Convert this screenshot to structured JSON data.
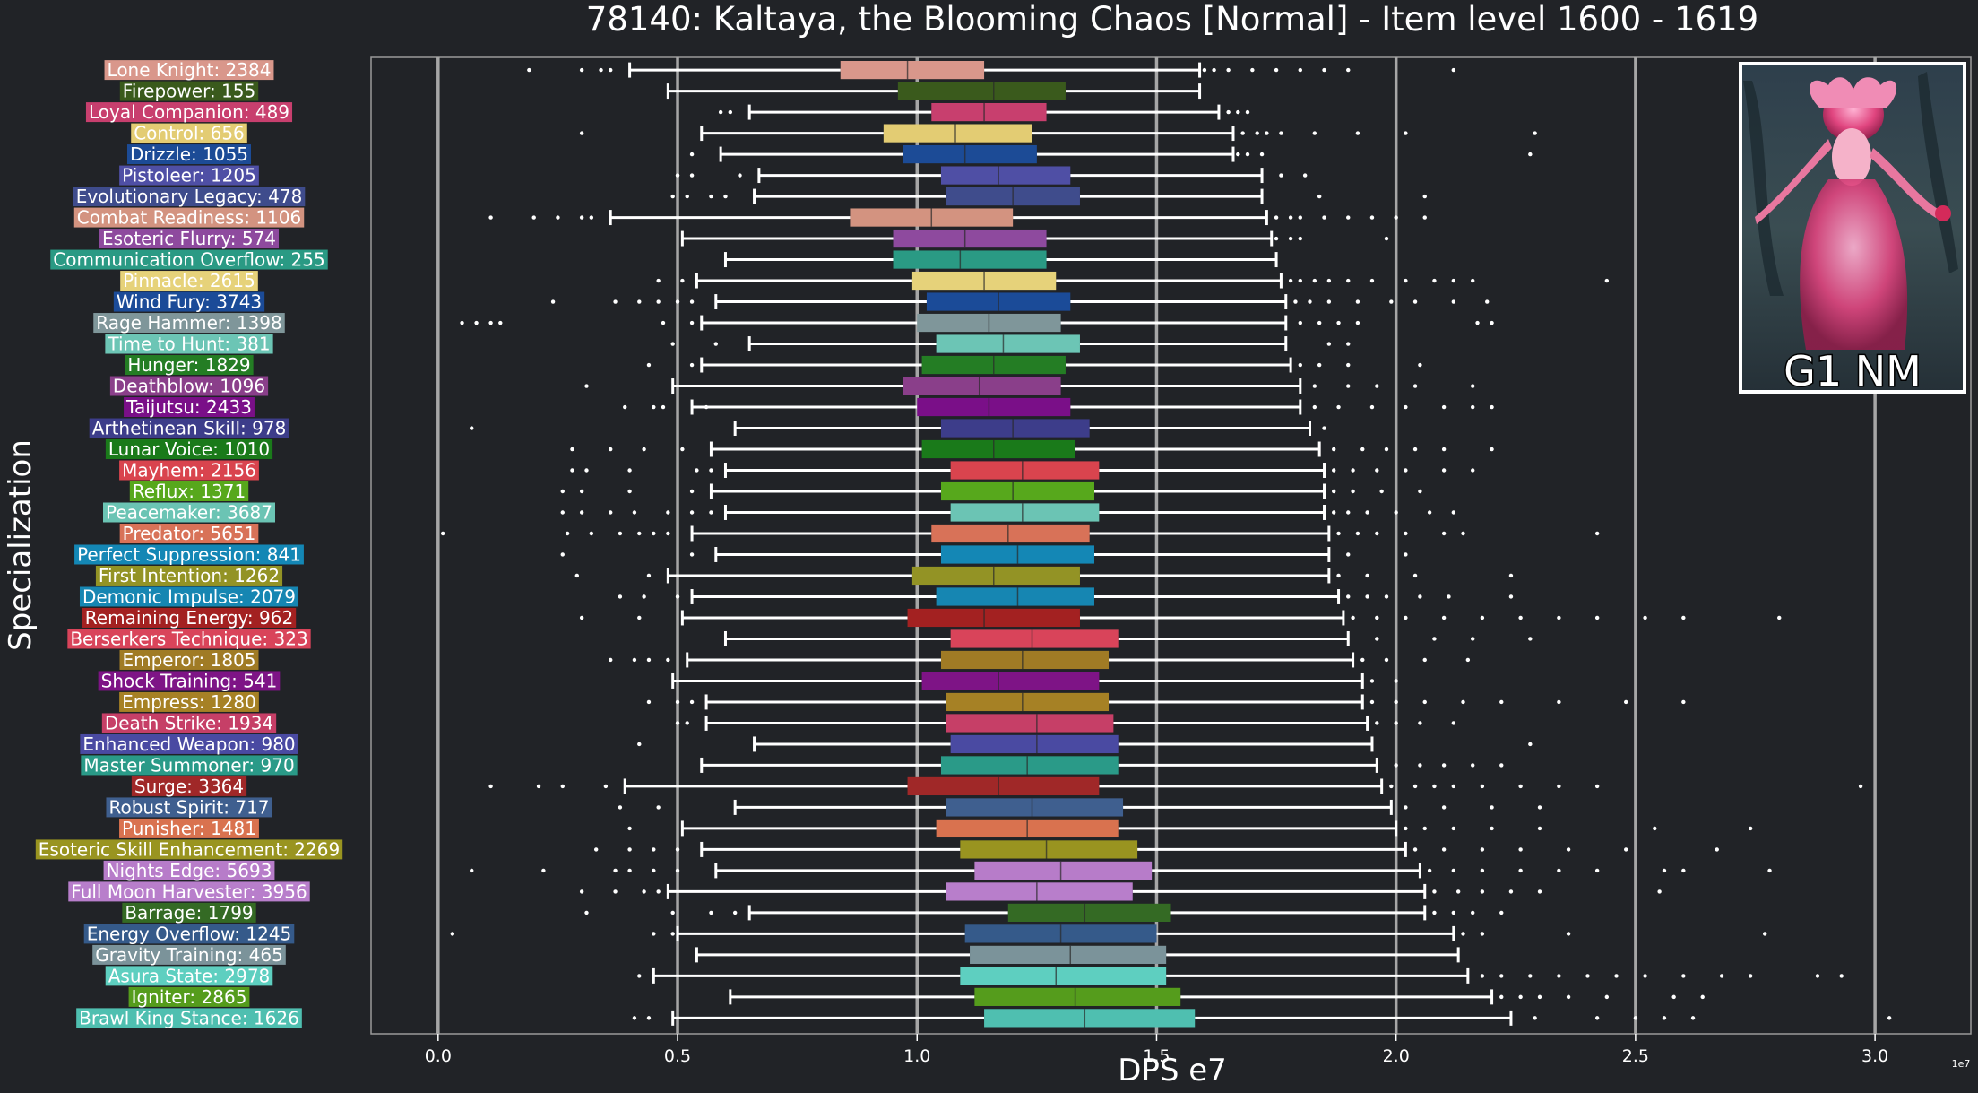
{
  "chart_data": {
    "type": "box",
    "title": "78140: Kaltaya, the Blooming Chaos [Normal] - Item level 1600 - 1619",
    "xlabel": "DPS e7",
    "ylabel": "Specialization",
    "x_scale_note": "1e7",
    "xlim": [
      -0.14,
      3.2
    ],
    "x_ticks": [
      0.0,
      0.5,
      1.0,
      1.5,
      2.0,
      2.5,
      3.0
    ],
    "x_tick_labels": [
      "0.0",
      "0.5",
      "1.0",
      "1.5",
      "2.0",
      "2.5",
      "3.0"
    ],
    "grid": "vertical",
    "badge_text": "G1 NM",
    "series": [
      {
        "label": "Lone Knight: 2384",
        "color": "#d9978b",
        "whisker_low": 0.4,
        "q1": 0.84,
        "median": 0.98,
        "q3": 1.14,
        "whisker_high": 1.59,
        "outliers": [
          0.19,
          0.3,
          0.34,
          0.36,
          1.6,
          1.62,
          1.65,
          1.7,
          1.75,
          1.8,
          1.85,
          1.9,
          2.12
        ]
      },
      {
        "label": "Firepower: 155",
        "color": "#3a5a1c",
        "whisker_low": 0.48,
        "q1": 0.96,
        "median": 1.16,
        "q3": 1.31,
        "whisker_high": 1.59,
        "outliers": []
      },
      {
        "label": "Loyal Companion: 489",
        "color": "#c83f6e",
        "whisker_low": 0.65,
        "q1": 1.03,
        "median": 1.14,
        "q3": 1.27,
        "whisker_high": 1.63,
        "outliers": [
          0.59,
          0.61,
          1.65,
          1.67,
          1.69
        ]
      },
      {
        "label": "Control: 656",
        "color": "#e3cc73",
        "whisker_low": 0.55,
        "q1": 0.93,
        "median": 1.08,
        "q3": 1.24,
        "whisker_high": 1.66,
        "outliers": [
          0.3,
          1.68,
          1.71,
          1.73,
          1.76,
          1.83,
          1.92,
          2.02,
          2.29
        ]
      },
      {
        "label": "Drizzle: 1055",
        "color": "#1c4b96",
        "whisker_low": 0.59,
        "q1": 0.97,
        "median": 1.1,
        "q3": 1.25,
        "whisker_high": 1.66,
        "outliers": [
          0.53,
          1.67,
          1.69,
          1.72,
          2.28
        ]
      },
      {
        "label": "Pistoleer: 1205",
        "color": "#4f4fa5",
        "whisker_low": 0.67,
        "q1": 1.05,
        "median": 1.17,
        "q3": 1.32,
        "whisker_high": 1.72,
        "outliers": [
          0.5,
          0.53,
          0.63,
          1.76,
          1.81
        ]
      },
      {
        "label": "Evolutionary Legacy: 478",
        "color": "#3f4c8c",
        "whisker_low": 0.66,
        "q1": 1.06,
        "median": 1.2,
        "q3": 1.34,
        "whisker_high": 1.72,
        "outliers": [
          0.49,
          0.52,
          0.57,
          0.6,
          1.84,
          2.06
        ]
      },
      {
        "label": "Combat Readiness: 1106",
        "color": "#d39380",
        "whisker_low": 0.36,
        "q1": 0.86,
        "median": 1.03,
        "q3": 1.2,
        "whisker_high": 1.73,
        "outliers": [
          0.11,
          0.2,
          0.25,
          0.3,
          0.32,
          1.75,
          1.78,
          1.8,
          1.85,
          1.9,
          1.95,
          2.0,
          2.06
        ]
      },
      {
        "label": "Esoteric Flurry: 574",
        "color": "#8e4a9e",
        "whisker_low": 0.51,
        "q1": 0.95,
        "median": 1.1,
        "q3": 1.27,
        "whisker_high": 1.74,
        "outliers": [
          1.75,
          1.78,
          1.8,
          1.98
        ]
      },
      {
        "label": "Communication Overflow: 255",
        "color": "#2a9a84",
        "whisker_low": 0.6,
        "q1": 0.95,
        "median": 1.09,
        "q3": 1.27,
        "whisker_high": 1.75,
        "outliers": []
      },
      {
        "label": "Pinnacle: 2615",
        "color": "#e6d27a",
        "whisker_low": 0.54,
        "q1": 0.99,
        "median": 1.14,
        "q3": 1.29,
        "whisker_high": 1.76,
        "outliers": [
          0.46,
          0.51,
          1.78,
          1.8,
          1.83,
          1.86,
          1.9,
          1.95,
          2.02,
          2.08,
          2.12,
          2.16,
          2.44
        ]
      },
      {
        "label": "Wind Fury: 3743",
        "color": "#1b4b98",
        "whisker_low": 0.58,
        "q1": 1.02,
        "median": 1.17,
        "q3": 1.32,
        "whisker_high": 1.77,
        "outliers": [
          0.24,
          0.37,
          0.42,
          0.46,
          0.5,
          0.53,
          1.79,
          1.82,
          1.86,
          1.92,
          1.99,
          2.04,
          2.12,
          2.19
        ]
      },
      {
        "label": "Rage Hammer: 1398",
        "color": "#7f969a",
        "whisker_low": 0.55,
        "q1": 1.0,
        "median": 1.15,
        "q3": 1.3,
        "whisker_high": 1.77,
        "outliers": [
          0.05,
          0.08,
          0.11,
          0.13,
          0.47,
          0.53,
          1.8,
          1.84,
          1.88,
          1.92,
          2.17,
          2.2
        ]
      },
      {
        "label": "Time to Hunt: 381",
        "color": "#6cc5b5",
        "whisker_low": 0.65,
        "q1": 1.04,
        "median": 1.18,
        "q3": 1.34,
        "whisker_high": 1.77,
        "outliers": [
          0.49,
          0.58,
          1.86,
          1.9
        ]
      },
      {
        "label": "Hunger: 1829",
        "color": "#247d24",
        "whisker_low": 0.55,
        "q1": 1.01,
        "median": 1.16,
        "q3": 1.31,
        "whisker_high": 1.78,
        "outliers": [
          0.44,
          0.53,
          1.8,
          1.84,
          1.9,
          2.05
        ]
      },
      {
        "label": "Deathblow: 1096",
        "color": "#8a3f8a",
        "whisker_low": 0.49,
        "q1": 0.97,
        "median": 1.13,
        "q3": 1.3,
        "whisker_high": 1.8,
        "outliers": [
          0.31,
          1.83,
          1.9,
          1.96,
          2.04,
          2.16
        ]
      },
      {
        "label": "Taijutsu: 2433",
        "color": "#7a0f88",
        "whisker_low": 0.53,
        "q1": 1.0,
        "median": 1.15,
        "q3": 1.32,
        "whisker_high": 1.8,
        "outliers": [
          0.39,
          0.45,
          0.47,
          0.56,
          1.83,
          1.88,
          1.95,
          2.02,
          2.1,
          2.16,
          2.2
        ]
      },
      {
        "label": "Arthetinean Skill: 978",
        "color": "#3d3d8a",
        "whisker_low": 0.62,
        "q1": 1.05,
        "median": 1.2,
        "q3": 1.36,
        "whisker_high": 1.82,
        "outliers": [
          0.07,
          1.85
        ]
      },
      {
        "label": "Lunar Voice: 1010",
        "color": "#1a7a1a",
        "whisker_low": 0.57,
        "q1": 1.01,
        "median": 1.16,
        "q3": 1.33,
        "whisker_high": 1.84,
        "outliers": [
          0.28,
          0.36,
          0.43,
          0.51,
          1.87,
          1.93,
          1.98,
          2.04,
          2.1,
          2.2
        ]
      },
      {
        "label": "Mayhem: 2156",
        "color": "#d9444e",
        "whisker_low": 0.6,
        "q1": 1.07,
        "median": 1.22,
        "q3": 1.38,
        "whisker_high": 1.85,
        "outliers": [
          0.28,
          0.31,
          0.4,
          0.54,
          0.57,
          1.87,
          1.91,
          1.96,
          2.02,
          2.1,
          2.16
        ]
      },
      {
        "label": "Reflux: 1371",
        "color": "#57a81c",
        "whisker_low": 0.57,
        "q1": 1.05,
        "median": 1.2,
        "q3": 1.37,
        "whisker_high": 1.85,
        "outliers": [
          0.26,
          0.3,
          0.4,
          0.53,
          1.87,
          1.91,
          1.97,
          2.05
        ]
      },
      {
        "label": "Peacemaker: 3687",
        "color": "#6bc4b4",
        "whisker_low": 0.6,
        "q1": 1.07,
        "median": 1.22,
        "q3": 1.38,
        "whisker_high": 1.85,
        "outliers": [
          0.26,
          0.3,
          0.36,
          0.41,
          0.48,
          0.53,
          0.57,
          1.87,
          1.9,
          1.94,
          2.0,
          2.07,
          2.12
        ]
      },
      {
        "label": "Predator: 5651",
        "color": "#d87258",
        "whisker_low": 0.53,
        "q1": 1.03,
        "median": 1.19,
        "q3": 1.36,
        "whisker_high": 1.86,
        "outliers": [
          0.01,
          0.27,
          0.32,
          0.38,
          0.42,
          0.45,
          0.48,
          1.88,
          1.92,
          1.96,
          2.02,
          2.1,
          2.14,
          2.42
        ]
      },
      {
        "label": "Perfect Suppression: 841",
        "color": "#1487b5",
        "whisker_low": 0.58,
        "q1": 1.05,
        "median": 1.21,
        "q3": 1.37,
        "whisker_high": 1.86,
        "outliers": [
          0.26,
          0.53,
          1.9,
          2.02
        ]
      },
      {
        "label": "First Intention: 1262",
        "color": "#939325",
        "whisker_low": 0.48,
        "q1": 0.99,
        "median": 1.16,
        "q3": 1.34,
        "whisker_high": 1.86,
        "outliers": [
          0.29,
          0.44,
          1.88,
          1.94,
          2.04,
          2.24
        ]
      },
      {
        "label": "Demonic Impulse: 2079",
        "color": "#1686b2",
        "whisker_low": 0.53,
        "q1": 1.04,
        "median": 1.21,
        "q3": 1.37,
        "whisker_high": 1.88,
        "outliers": [
          0.38,
          0.43,
          0.5,
          1.9,
          1.94,
          1.98,
          2.05,
          2.11,
          2.24
        ]
      },
      {
        "label": "Remaining Energy: 962",
        "color": "#a32121",
        "whisker_low": 0.51,
        "q1": 0.98,
        "median": 1.14,
        "q3": 1.34,
        "whisker_high": 1.89,
        "outliers": [
          0.3,
          0.42,
          1.91,
          1.96,
          2.02,
          2.1,
          2.18,
          2.26,
          2.34,
          2.42,
          2.52,
          2.6,
          2.8
        ]
      },
      {
        "label": "Berserkers Technique: 323",
        "color": "#d9445a",
        "whisker_low": 0.6,
        "q1": 1.07,
        "median": 1.24,
        "q3": 1.42,
        "whisker_high": 1.9,
        "outliers": [
          1.96,
          2.08,
          2.16,
          2.28
        ]
      },
      {
        "label": "Emperor: 1805",
        "color": "#a07b25",
        "whisker_low": 0.52,
        "q1": 1.05,
        "median": 1.22,
        "q3": 1.4,
        "whisker_high": 1.91,
        "outliers": [
          0.36,
          0.41,
          0.44,
          0.48,
          1.93,
          1.98,
          2.06,
          2.15
        ]
      },
      {
        "label": "Shock Training: 541",
        "color": "#7e1486",
        "whisker_low": 0.49,
        "q1": 1.01,
        "median": 1.17,
        "q3": 1.38,
        "whisker_high": 1.93,
        "outliers": [
          1.95,
          2.0
        ]
      },
      {
        "label": "Empress: 1280",
        "color": "#a68125",
        "whisker_low": 0.56,
        "q1": 1.06,
        "median": 1.22,
        "q3": 1.4,
        "whisker_high": 1.93,
        "outliers": [
          0.44,
          0.5,
          0.53,
          1.95,
          2.0,
          2.06,
          2.14,
          2.22,
          2.34,
          2.48,
          2.6
        ]
      },
      {
        "label": "Death Strike: 1934",
        "color": "#c63f67",
        "whisker_low": 0.56,
        "q1": 1.06,
        "median": 1.25,
        "q3": 1.41,
        "whisker_high": 1.94,
        "outliers": [
          0.5,
          0.52,
          1.96,
          2.0,
          2.05,
          2.12
        ]
      },
      {
        "label": "Enhanced Weapon: 980",
        "color": "#4a4aa2",
        "whisker_low": 0.66,
        "q1": 1.07,
        "median": 1.25,
        "q3": 1.42,
        "whisker_high": 1.95,
        "outliers": [
          0.42,
          2.28
        ]
      },
      {
        "label": "Master Summoner: 970",
        "color": "#2a9a88",
        "whisker_low": 0.55,
        "q1": 1.05,
        "median": 1.23,
        "q3": 1.42,
        "whisker_high": 1.96,
        "outliers": [
          2.0,
          2.05,
          2.1,
          2.16,
          2.22
        ]
      },
      {
        "label": "Surge: 3364",
        "color": "#a02828",
        "whisker_low": 0.39,
        "q1": 0.98,
        "median": 1.17,
        "q3": 1.38,
        "whisker_high": 1.97,
        "outliers": [
          0.11,
          0.21,
          0.26,
          0.35,
          1.99,
          2.04,
          2.08,
          2.12,
          2.18,
          2.26,
          2.34,
          2.42,
          2.97
        ]
      },
      {
        "label": "Robust Spirit: 717",
        "color": "#3f5f8f",
        "whisker_low": 0.62,
        "q1": 1.06,
        "median": 1.24,
        "q3": 1.43,
        "whisker_high": 1.99,
        "outliers": [
          0.38,
          0.46,
          2.02,
          2.1,
          2.2,
          2.3
        ]
      },
      {
        "label": "Punisher: 1481",
        "color": "#d9724f",
        "whisker_low": 0.51,
        "q1": 1.04,
        "median": 1.23,
        "q3": 1.42,
        "whisker_high": 2.0,
        "outliers": [
          0.4,
          2.02,
          2.06,
          2.12,
          2.2,
          2.3,
          2.54,
          2.74
        ]
      },
      {
        "label": "Esoteric Skill Enhancement: 2269",
        "color": "#999420",
        "whisker_low": 0.55,
        "q1": 1.09,
        "median": 1.27,
        "q3": 1.46,
        "whisker_high": 2.02,
        "outliers": [
          0.33,
          0.4,
          0.45,
          0.5,
          2.04,
          2.1,
          2.18,
          2.26,
          2.36,
          2.48,
          2.67
        ]
      },
      {
        "label": "Nights Edge: 5693",
        "color": "#b77cc9",
        "whisker_low": 0.58,
        "q1": 1.12,
        "median": 1.3,
        "q3": 1.49,
        "whisker_high": 2.05,
        "outliers": [
          0.07,
          0.22,
          0.37,
          0.4,
          0.45,
          0.5,
          2.07,
          2.12,
          2.18,
          2.26,
          2.34,
          2.42,
          2.56,
          2.6,
          2.78
        ]
      },
      {
        "label": "Full Moon Harvester: 3956",
        "color": "#b87ecb",
        "whisker_low": 0.48,
        "q1": 1.06,
        "median": 1.25,
        "q3": 1.45,
        "whisker_high": 2.06,
        "outliers": [
          0.3,
          0.37,
          0.43,
          0.46,
          2.08,
          2.13,
          2.18,
          2.24,
          2.3,
          2.55
        ]
      },
      {
        "label": "Barrage: 1799",
        "color": "#346a24",
        "whisker_low": 0.65,
        "q1": 1.19,
        "median": 1.35,
        "q3": 1.53,
        "whisker_high": 2.06,
        "outliers": [
          0.31,
          0.49,
          0.57,
          0.62,
          2.08,
          2.12,
          2.16,
          2.22
        ]
      },
      {
        "label": "Energy Overflow: 1245",
        "color": "#355a8a",
        "whisker_low": 0.5,
        "q1": 1.1,
        "median": 1.3,
        "q3": 1.5,
        "whisker_high": 2.12,
        "outliers": [
          0.03,
          0.45,
          0.49,
          2.14,
          2.18,
          2.36,
          2.77
        ]
      },
      {
        "label": "Gravity Training: 465",
        "color": "#7b939a",
        "whisker_low": 0.54,
        "q1": 1.11,
        "median": 1.32,
        "q3": 1.52,
        "whisker_high": 2.13,
        "outliers": []
      },
      {
        "label": "Asura State: 2978",
        "color": "#5ecfc0",
        "whisker_low": 0.45,
        "q1": 1.09,
        "median": 1.29,
        "q3": 1.52,
        "whisker_high": 2.15,
        "outliers": [
          0.42,
          2.18,
          2.22,
          2.28,
          2.34,
          2.4,
          2.46,
          2.52,
          2.6,
          2.68,
          2.74,
          2.88,
          2.93
        ]
      },
      {
        "label": "Igniter: 2865",
        "color": "#559c1c",
        "whisker_low": 0.61,
        "q1": 1.12,
        "median": 1.33,
        "q3": 1.55,
        "whisker_high": 2.2,
        "outliers": [
          2.22,
          2.26,
          2.3,
          2.36,
          2.44,
          2.58,
          2.64
        ]
      },
      {
        "label": "Brawl King Stance: 1626",
        "color": "#4fbfb0",
        "whisker_low": 0.49,
        "q1": 1.14,
        "median": 1.35,
        "q3": 1.58,
        "whisker_high": 2.24,
        "outliers": [
          0.41,
          0.44,
          2.29,
          2.42,
          2.5,
          2.56,
          2.62,
          3.03
        ]
      }
    ]
  }
}
